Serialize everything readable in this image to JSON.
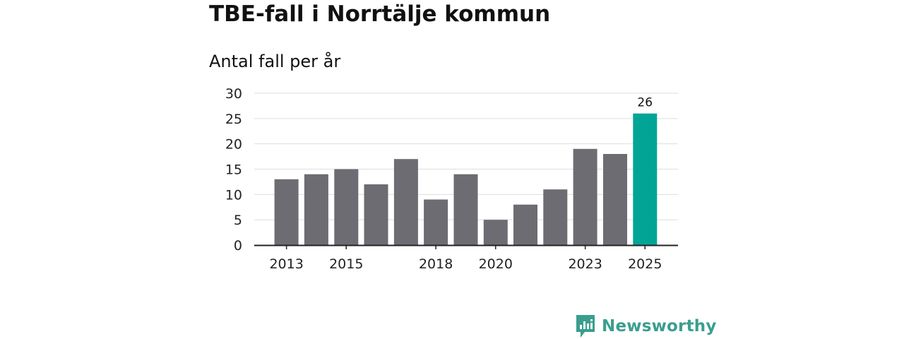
{
  "title": "TBE-fall i Norrtälje kommun",
  "subtitle": "Antal fall per år",
  "brand": {
    "name": "Newsworthy",
    "icon": "newsworthy-logo-icon",
    "color": "#3a9e8f"
  },
  "colors": {
    "bar": "#6d6c72",
    "highlight": "#00a596",
    "grid": "#dedede",
    "axis": "#222222"
  },
  "chart_data": {
    "type": "bar",
    "title": "TBE-fall i Norrtälje kommun",
    "subtitle": "Antal fall per år",
    "xlabel": "",
    "ylabel": "",
    "categories": [
      "2013",
      "2014",
      "2015",
      "2016",
      "2017",
      "2018",
      "2019",
      "2020",
      "2021",
      "2022",
      "2023",
      "2024",
      "2025"
    ],
    "values": [
      13,
      14,
      15,
      12,
      17,
      9,
      14,
      5,
      8,
      11,
      19,
      18,
      26
    ],
    "ylim": [
      0,
      30
    ],
    "yticks": [
      0,
      5,
      10,
      15,
      20,
      25,
      30
    ],
    "xtick_labels": [
      "2013",
      "2015",
      "2018",
      "2020",
      "2023",
      "2025"
    ],
    "highlight": {
      "category": "2025",
      "value": 26,
      "label": "26"
    },
    "grid": true,
    "legend": "none"
  }
}
